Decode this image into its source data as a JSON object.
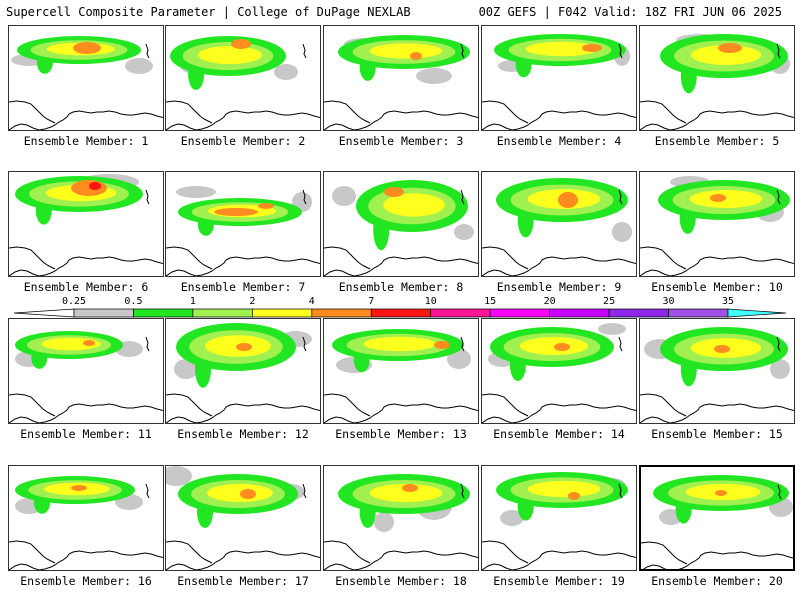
{
  "header": {
    "title": "Supercell Composite Parameter | College of DuPage NEXLAB",
    "run_info": "00Z GEFS | F042 Valid: 18Z FRI JUN 06 2025"
  },
  "members": [
    {
      "label": "Ensemble Member: 1"
    },
    {
      "label": "Ensemble Member: 2"
    },
    {
      "label": "Ensemble Member: 3"
    },
    {
      "label": "Ensemble Member: 4"
    },
    {
      "label": "Ensemble Member: 5"
    },
    {
      "label": "Ensemble Member: 6"
    },
    {
      "label": "Ensemble Member: 7"
    },
    {
      "label": "Ensemble Member: 8"
    },
    {
      "label": "Ensemble Member: 9"
    },
    {
      "label": "Ensemble Member: 10"
    },
    {
      "label": "Ensemble Member: 11"
    },
    {
      "label": "Ensemble Member: 12"
    },
    {
      "label": "Ensemble Member: 13"
    },
    {
      "label": "Ensemble Member: 14"
    },
    {
      "label": "Ensemble Member: 15"
    },
    {
      "label": "Ensemble Member: 16"
    },
    {
      "label": "Ensemble Member: 17"
    },
    {
      "label": "Ensemble Member: 18"
    },
    {
      "label": "Ensemble Member: 19"
    },
    {
      "label": "Ensemble Member: 20"
    }
  ],
  "legend": {
    "thresholds": [
      "0.25",
      "0.5",
      "1",
      "2",
      "4",
      "7",
      "10",
      "15",
      "20",
      "25",
      "30",
      "35"
    ],
    "colors": [
      "#ffffff",
      "#c8c8c8",
      "#22e622",
      "#a0f050",
      "#ffff1e",
      "#ff8c1e",
      "#ff1414",
      "#ff1496",
      "#ff00ff",
      "#c800ff",
      "#8c28e6",
      "#a050e6",
      "#40ffff"
    ]
  }
}
